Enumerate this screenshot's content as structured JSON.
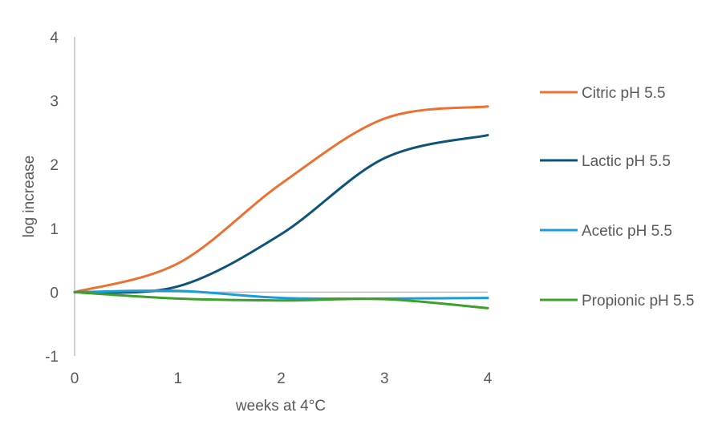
{
  "chart_data": {
    "type": "line",
    "title": "",
    "xlabel": "weeks at 4°C",
    "ylabel": "log increase",
    "x": [
      0,
      1,
      2,
      3,
      4
    ],
    "xlim": [
      0,
      4
    ],
    "ylim": [
      -1,
      4
    ],
    "x_ticks": [
      "0",
      "1",
      "2",
      "3",
      "4"
    ],
    "y_ticks": [
      "-1",
      "0",
      "1",
      "2",
      "3",
      "4"
    ],
    "grid": false,
    "smoothed": true,
    "legend_placement": "right",
    "series": [
      {
        "name": "Citric pH 5.5",
        "color": "#ED7030",
        "values": [
          0,
          0.45,
          1.7,
          2.72,
          2.91
        ]
      },
      {
        "name": "Lactic pH 5.5",
        "color": "#0E5478",
        "values": [
          0,
          0.09,
          0.91,
          2.1,
          2.46
        ]
      },
      {
        "name": "Acetic pH 5.5",
        "color": "#1A9CD8",
        "values": [
          0,
          0.02,
          -0.09,
          -0.1,
          -0.09
        ]
      },
      {
        "name": "Propionic pH 5.5",
        "color": "#3DA02A",
        "values": [
          0,
          -0.1,
          -0.13,
          -0.11,
          -0.25
        ]
      }
    ]
  }
}
